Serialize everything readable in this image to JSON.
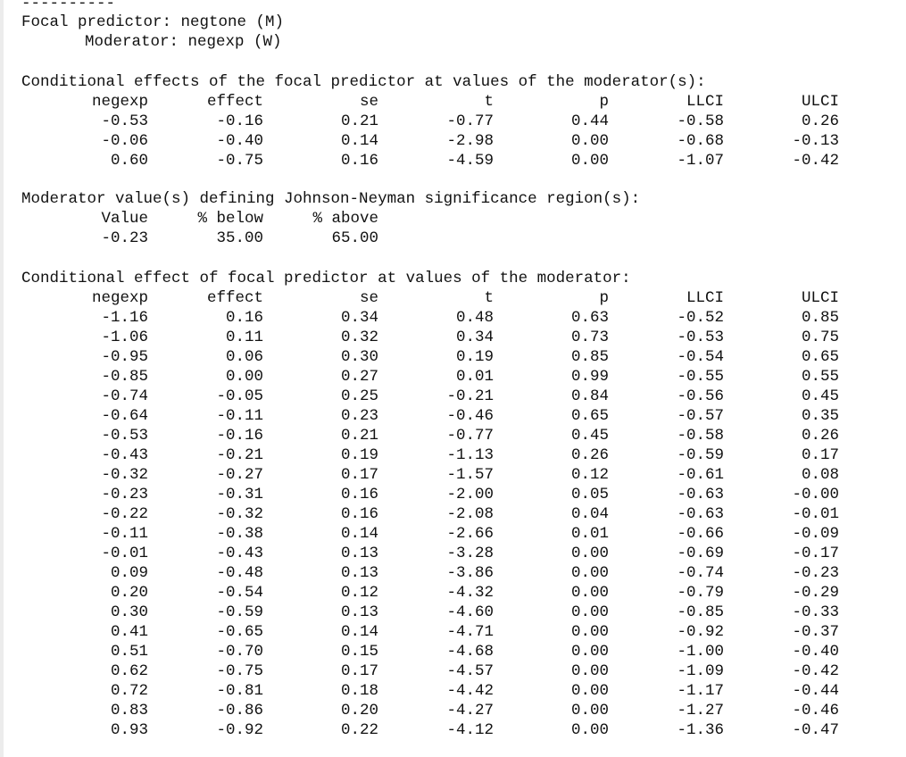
{
  "separator": "----------",
  "focal_predictor_line": "Focal predictor: negtone (M)",
  "moderator_line": "Moderator: negexp (W)",
  "section1": {
    "title": "Conditional effects of the focal predictor at values of the moderator(s):",
    "headers": [
      "negexp",
      "effect",
      "se",
      "t",
      "p",
      "LLCI",
      "ULCI"
    ],
    "rows": [
      [
        "-0.53",
        "-0.16",
        "0.21",
        "-0.77",
        "0.44",
        "-0.58",
        "0.26"
      ],
      [
        "-0.06",
        "-0.40",
        "0.14",
        "-2.98",
        "0.00",
        "-0.68",
        "-0.13"
      ],
      [
        "0.60",
        "-0.75",
        "0.16",
        "-4.59",
        "0.00",
        "-1.07",
        "-0.42"
      ]
    ]
  },
  "section2": {
    "title": "Moderator value(s) defining Johnson-Neyman significance region(s):",
    "headers": [
      "Value",
      "% below",
      "% above"
    ],
    "rows": [
      [
        "-0.23",
        "35.00",
        "65.00"
      ]
    ]
  },
  "section3": {
    "title": "Conditional effect of focal predictor at values of the moderator:",
    "headers": [
      "negexp",
      "effect",
      "se",
      "t",
      "p",
      "LLCI",
      "ULCI"
    ],
    "rows": [
      [
        "-1.16",
        "0.16",
        "0.34",
        "0.48",
        "0.63",
        "-0.52",
        "0.85"
      ],
      [
        "-1.06",
        "0.11",
        "0.32",
        "0.34",
        "0.73",
        "-0.53",
        "0.75"
      ],
      [
        "-0.95",
        "0.06",
        "0.30",
        "0.19",
        "0.85",
        "-0.54",
        "0.65"
      ],
      [
        "-0.85",
        "0.00",
        "0.27",
        "0.01",
        "0.99",
        "-0.55",
        "0.55"
      ],
      [
        "-0.74",
        "-0.05",
        "0.25",
        "-0.21",
        "0.84",
        "-0.56",
        "0.45"
      ],
      [
        "-0.64",
        "-0.11",
        "0.23",
        "-0.46",
        "0.65",
        "-0.57",
        "0.35"
      ],
      [
        "-0.53",
        "-0.16",
        "0.21",
        "-0.77",
        "0.45",
        "-0.58",
        "0.26"
      ],
      [
        "-0.43",
        "-0.21",
        "0.19",
        "-1.13",
        "0.26",
        "-0.59",
        "0.17"
      ],
      [
        "-0.32",
        "-0.27",
        "0.17",
        "-1.57",
        "0.12",
        "-0.61",
        "0.08"
      ],
      [
        "-0.23",
        "-0.31",
        "0.16",
        "-2.00",
        "0.05",
        "-0.63",
        "-0.00"
      ],
      [
        "-0.22",
        "-0.32",
        "0.16",
        "-2.08",
        "0.04",
        "-0.63",
        "-0.01"
      ],
      [
        "-0.11",
        "-0.38",
        "0.14",
        "-2.66",
        "0.01",
        "-0.66",
        "-0.09"
      ],
      [
        "-0.01",
        "-0.43",
        "0.13",
        "-3.28",
        "0.00",
        "-0.69",
        "-0.17"
      ],
      [
        "0.09",
        "-0.48",
        "0.13",
        "-3.86",
        "0.00",
        "-0.74",
        "-0.23"
      ],
      [
        "0.20",
        "-0.54",
        "0.12",
        "-4.32",
        "0.00",
        "-0.79",
        "-0.29"
      ],
      [
        "0.30",
        "-0.59",
        "0.13",
        "-4.60",
        "0.00",
        "-0.85",
        "-0.33"
      ],
      [
        "0.41",
        "-0.65",
        "0.14",
        "-4.71",
        "0.00",
        "-0.92",
        "-0.37"
      ],
      [
        "0.51",
        "-0.70",
        "0.15",
        "-4.68",
        "0.00",
        "-1.00",
        "-0.40"
      ],
      [
        "0.62",
        "-0.75",
        "0.17",
        "-4.57",
        "0.00",
        "-1.09",
        "-0.42"
      ],
      [
        "0.72",
        "-0.81",
        "0.18",
        "-4.42",
        "0.00",
        "-1.17",
        "-0.44"
      ],
      [
        "0.83",
        "-0.86",
        "0.20",
        "-4.27",
        "0.00",
        "-1.27",
        "-0.46"
      ],
      [
        "0.93",
        "-0.92",
        "0.22",
        "-4.12",
        "0.00",
        "-1.36",
        "-0.47"
      ]
    ]
  }
}
